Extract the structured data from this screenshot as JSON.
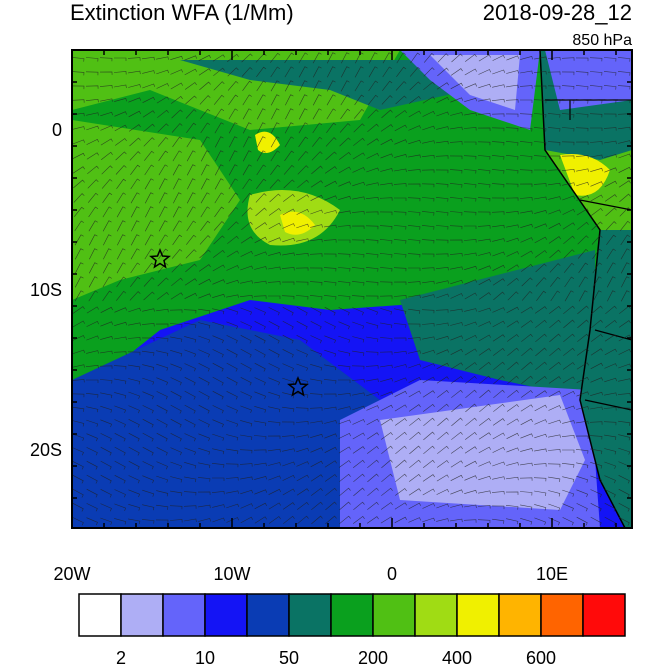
{
  "header": {
    "title": "Extinction WFA (1/Mm)",
    "date": "2018-09-28_12",
    "level": "850 hPa"
  },
  "lat_labels": [
    "0",
    "10S",
    "20S"
  ],
  "lon_labels": [
    "20W",
    "10W",
    "0",
    "10E"
  ],
  "colorbar": {
    "colors": [
      "#ffffff",
      "#aeaef5",
      "#6464fa",
      "#1414f5",
      "#0a3cb4",
      "#0a7364",
      "#0aa01e",
      "#50c014",
      "#a0dc14",
      "#f0f000",
      "#ffb400",
      "#ff6400",
      "#ff0a0a"
    ],
    "labels": [
      "2",
      "10",
      "50",
      "200",
      "400",
      "600"
    ]
  }
}
